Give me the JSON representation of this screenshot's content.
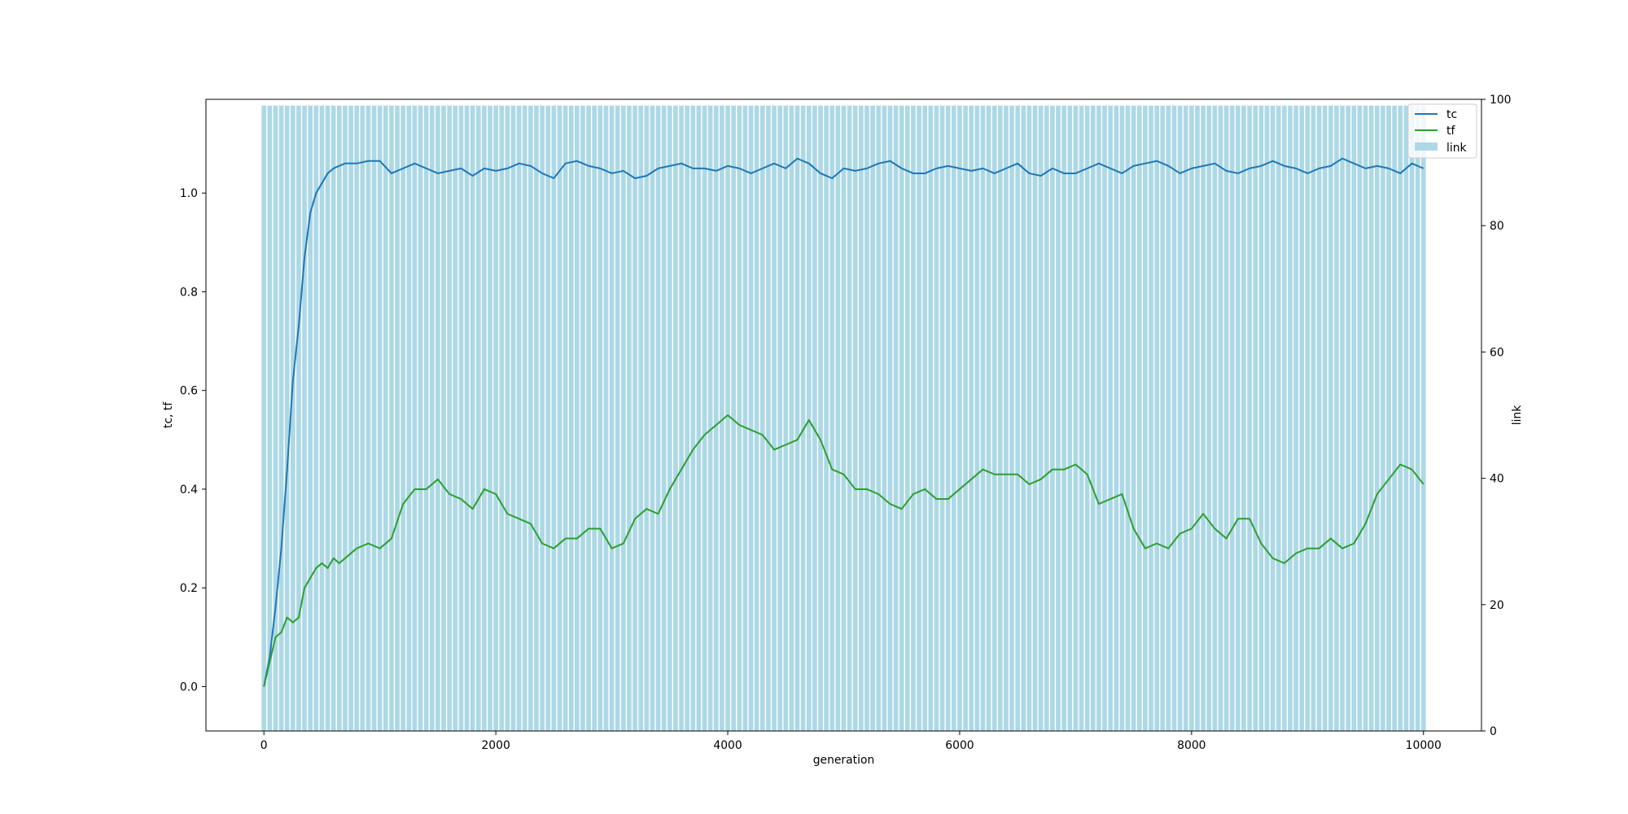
{
  "chart_data": {
    "type": "line",
    "xlabel": "generation",
    "ylabel": "tc, tf",
    "y2label": "link",
    "xlim": [
      -500,
      10500
    ],
    "ylim": [
      -0.09,
      1.19
    ],
    "y2lim": [
      0,
      100
    ],
    "x_ticks": [
      0,
      2000,
      4000,
      6000,
      8000,
      10000
    ],
    "y_ticks": [
      0.0,
      0.2,
      0.4,
      0.6,
      0.8,
      1.0
    ],
    "y2_ticks": [
      0,
      20,
      40,
      60,
      80,
      100
    ],
    "x_tick_labels": [
      "0",
      "2000",
      "4000",
      "6000",
      "8000",
      "10000"
    ],
    "y_tick_labels": [
      "0.0",
      "0.2",
      "0.4",
      "0.6",
      "0.8",
      "1.0"
    ],
    "y2_tick_labels": [
      "0",
      "20",
      "40",
      "60",
      "80",
      "100"
    ],
    "legend": {
      "position": "top-right",
      "entries": [
        "tc",
        "tf",
        "link"
      ]
    },
    "grid": false,
    "bars": {
      "name": "link",
      "axis": "right",
      "color": "#add8e6",
      "x_start": 0,
      "x_step": 50,
      "count": 201,
      "width": 40,
      "value": 99
    },
    "series": [
      {
        "name": "tc",
        "axis": "left",
        "color": "#1f77b4",
        "x": [
          0,
          50,
          100,
          150,
          200,
          250,
          300,
          350,
          400,
          450,
          500,
          550,
          600,
          650,
          700,
          800,
          900,
          1000,
          1100,
          1200,
          1300,
          1400,
          1500,
          1600,
          1700,
          1800,
          1900,
          2000,
          2100,
          2200,
          2300,
          2400,
          2500,
          2600,
          2700,
          2800,
          2900,
          3000,
          3100,
          3200,
          3300,
          3400,
          3500,
          3600,
          3700,
          3800,
          3900,
          4000,
          4100,
          4200,
          4300,
          4400,
          4500,
          4600,
          4700,
          4800,
          4900,
          5000,
          5100,
          5200,
          5300,
          5400,
          5500,
          5600,
          5700,
          5800,
          5900,
          6000,
          6100,
          6200,
          6300,
          6400,
          6500,
          6600,
          6700,
          6800,
          6900,
          7000,
          7100,
          7200,
          7300,
          7400,
          7500,
          7600,
          7700,
          7800,
          7900,
          8000,
          8100,
          8200,
          8300,
          8400,
          8500,
          8600,
          8700,
          8800,
          8900,
          9000,
          9100,
          9200,
          9300,
          9400,
          9500,
          9600,
          9700,
          9800,
          9900,
          10000
        ],
        "y": [
          0.0,
          0.06,
          0.16,
          0.28,
          0.44,
          0.62,
          0.73,
          0.87,
          0.96,
          1.0,
          1.02,
          1.04,
          1.05,
          1.055,
          1.06,
          1.06,
          1.065,
          1.065,
          1.04,
          1.05,
          1.06,
          1.05,
          1.04,
          1.045,
          1.05,
          1.035,
          1.05,
          1.045,
          1.05,
          1.06,
          1.055,
          1.04,
          1.03,
          1.06,
          1.065,
          1.055,
          1.05,
          1.04,
          1.045,
          1.03,
          1.035,
          1.05,
          1.055,
          1.06,
          1.05,
          1.05,
          1.045,
          1.055,
          1.05,
          1.04,
          1.05,
          1.06,
          1.05,
          1.07,
          1.06,
          1.04,
          1.03,
          1.05,
          1.045,
          1.05,
          1.06,
          1.065,
          1.05,
          1.04,
          1.04,
          1.05,
          1.055,
          1.05,
          1.045,
          1.05,
          1.04,
          1.05,
          1.06,
          1.04,
          1.035,
          1.05,
          1.04,
          1.04,
          1.05,
          1.06,
          1.05,
          1.04,
          1.055,
          1.06,
          1.065,
          1.055,
          1.04,
          1.05,
          1.055,
          1.06,
          1.045,
          1.04,
          1.05,
          1.055,
          1.065,
          1.055,
          1.05,
          1.04,
          1.05,
          1.055,
          1.07,
          1.06,
          1.05,
          1.055,
          1.05,
          1.04,
          1.06,
          1.05
        ]
      },
      {
        "name": "tf",
        "axis": "left",
        "color": "#2ca02c",
        "x": [
          0,
          50,
          100,
          150,
          200,
          250,
          300,
          350,
          400,
          450,
          500,
          550,
          600,
          650,
          700,
          800,
          900,
          1000,
          1100,
          1200,
          1300,
          1400,
          1500,
          1600,
          1700,
          1800,
          1900,
          2000,
          2100,
          2200,
          2300,
          2400,
          2500,
          2600,
          2700,
          2800,
          2900,
          3000,
          3100,
          3200,
          3300,
          3400,
          3500,
          3600,
          3700,
          3800,
          3900,
          4000,
          4100,
          4200,
          4300,
          4400,
          4500,
          4600,
          4700,
          4800,
          4900,
          5000,
          5100,
          5200,
          5300,
          5400,
          5500,
          5600,
          5700,
          5800,
          5900,
          6000,
          6100,
          6200,
          6300,
          6400,
          6500,
          6600,
          6700,
          6800,
          6900,
          7000,
          7100,
          7200,
          7300,
          7400,
          7500,
          7600,
          7700,
          7800,
          7900,
          8000,
          8100,
          8200,
          8300,
          8400,
          8500,
          8600,
          8700,
          8800,
          8900,
          9000,
          9100,
          9200,
          9300,
          9400,
          9500,
          9600,
          9700,
          9800,
          9900,
          10000
        ],
        "y": [
          0.0,
          0.05,
          0.1,
          0.11,
          0.14,
          0.13,
          0.14,
          0.2,
          0.22,
          0.24,
          0.25,
          0.24,
          0.26,
          0.25,
          0.26,
          0.28,
          0.29,
          0.28,
          0.3,
          0.37,
          0.4,
          0.4,
          0.42,
          0.39,
          0.38,
          0.36,
          0.4,
          0.39,
          0.35,
          0.34,
          0.33,
          0.29,
          0.28,
          0.3,
          0.3,
          0.32,
          0.32,
          0.28,
          0.29,
          0.34,
          0.36,
          0.35,
          0.4,
          0.44,
          0.48,
          0.51,
          0.53,
          0.55,
          0.53,
          0.52,
          0.51,
          0.48,
          0.49,
          0.5,
          0.54,
          0.5,
          0.44,
          0.43,
          0.4,
          0.4,
          0.39,
          0.37,
          0.36,
          0.39,
          0.4,
          0.38,
          0.38,
          0.4,
          0.42,
          0.44,
          0.43,
          0.43,
          0.43,
          0.41,
          0.42,
          0.44,
          0.44,
          0.45,
          0.43,
          0.37,
          0.38,
          0.39,
          0.32,
          0.28,
          0.29,
          0.28,
          0.31,
          0.32,
          0.35,
          0.32,
          0.3,
          0.34,
          0.34,
          0.29,
          0.26,
          0.25,
          0.27,
          0.28,
          0.28,
          0.3,
          0.28,
          0.29,
          0.33,
          0.39,
          0.42,
          0.45,
          0.44,
          0.41
        ]
      }
    ]
  }
}
